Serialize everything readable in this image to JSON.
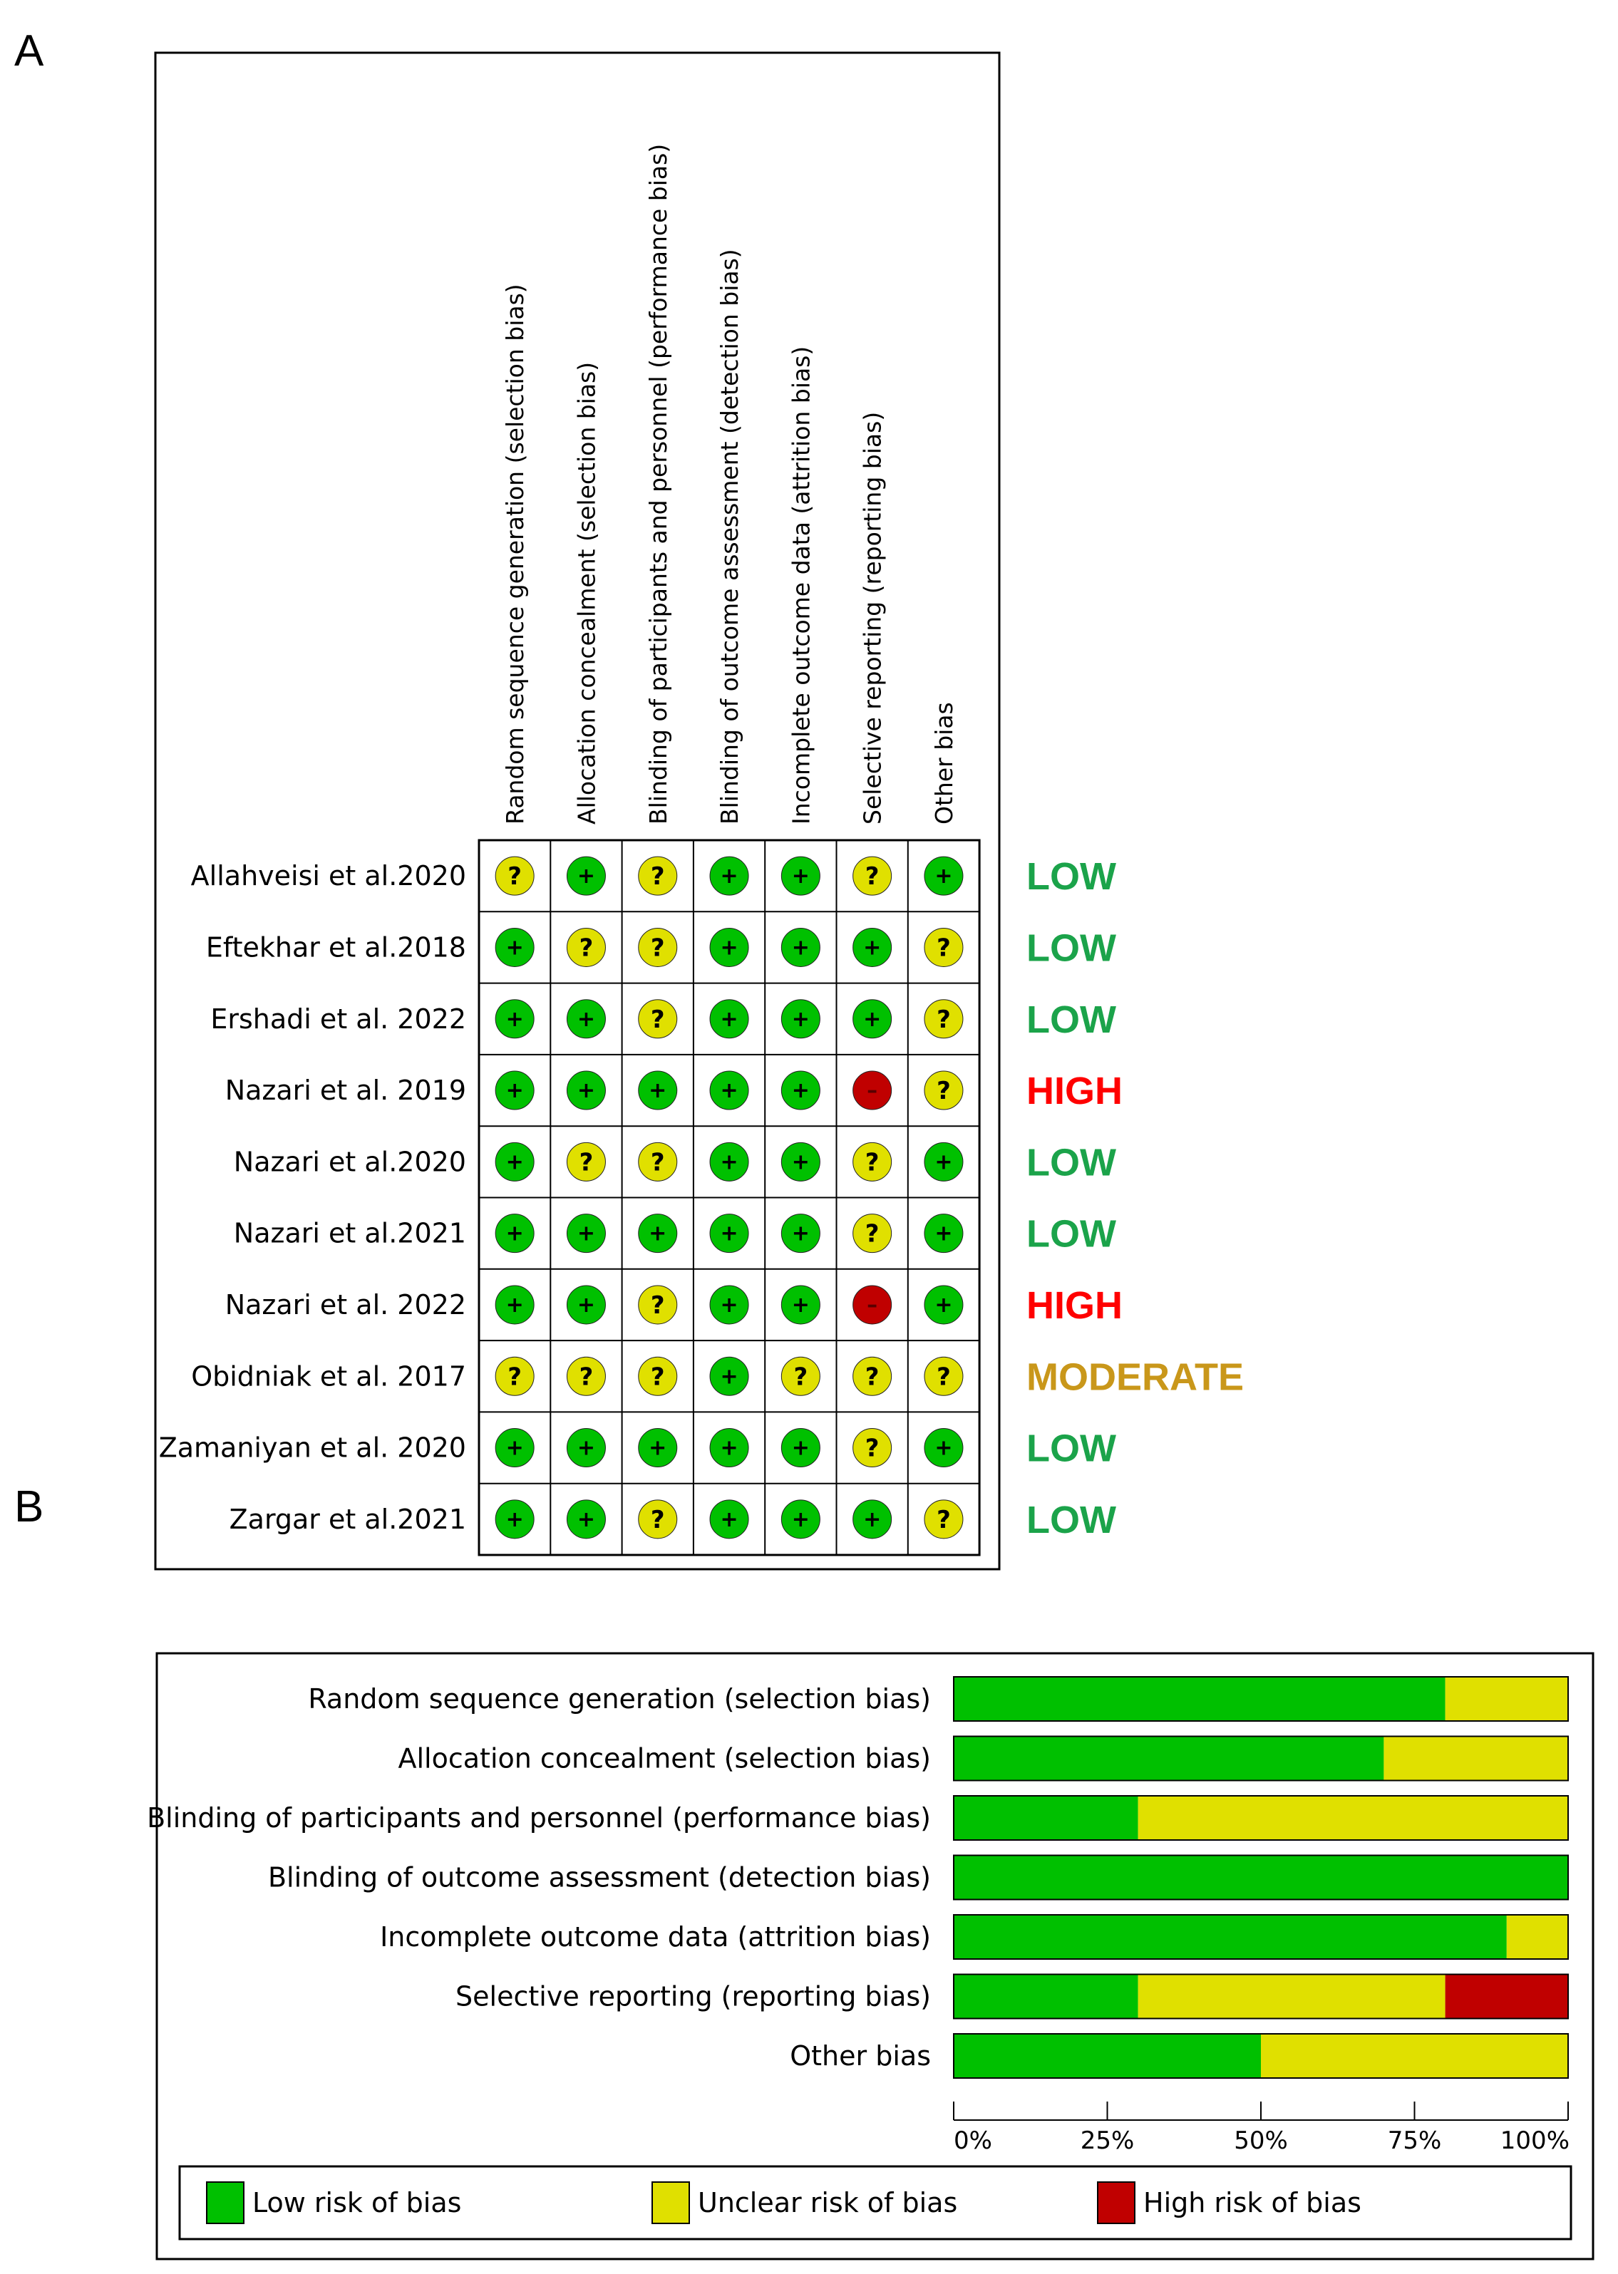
{
  "panels": {
    "a": "A",
    "b": "B"
  },
  "colors": {
    "low": "#00C000",
    "unclear": "#E0E000",
    "high": "#C00000",
    "rating_low": "#1BA34A",
    "rating_high": "#FF0000",
    "rating_moderate": "#C9971A"
  },
  "chart_data": [
    {
      "type": "table",
      "domains": [
        "Random sequence generation (selection bias)",
        "Allocation concealment (selection bias)",
        "Blinding of participants and personnel (performance bias)",
        "Blinding of outcome assessment (detection bias)",
        "Incomplete outcome data (attrition bias)",
        "Selective reporting (reporting bias)",
        "Other bias"
      ],
      "symbols": {
        "low": "+",
        "unclear": "?",
        "high": "–"
      },
      "studies": [
        {
          "name": "Allahveisi et al.2020",
          "judgements": [
            "unclear",
            "low",
            "unclear",
            "low",
            "low",
            "unclear",
            "low"
          ],
          "overall": "LOW",
          "overall_level": "low"
        },
        {
          "name": "Eftekhar et al.2018",
          "judgements": [
            "low",
            "unclear",
            "unclear",
            "low",
            "low",
            "low",
            "unclear"
          ],
          "overall": "LOW",
          "overall_level": "low"
        },
        {
          "name": "Ershadi et al. 2022",
          "judgements": [
            "low",
            "low",
            "unclear",
            "low",
            "low",
            "low",
            "unclear"
          ],
          "overall": "LOW",
          "overall_level": "low"
        },
        {
          "name": "Nazari et al. 2019",
          "judgements": [
            "low",
            "low",
            "low",
            "low",
            "low",
            "high",
            "unclear"
          ],
          "overall": "HIGH",
          "overall_level": "high"
        },
        {
          "name": "Nazari et al.2020",
          "judgements": [
            "low",
            "unclear",
            "unclear",
            "low",
            "low",
            "unclear",
            "low"
          ],
          "overall": "LOW",
          "overall_level": "low"
        },
        {
          "name": "Nazari et al.2021",
          "judgements": [
            "low",
            "low",
            "low",
            "low",
            "low",
            "unclear",
            "low"
          ],
          "overall": "LOW",
          "overall_level": "low"
        },
        {
          "name": "Nazari et al. 2022",
          "judgements": [
            "low",
            "low",
            "unclear",
            "low",
            "low",
            "high",
            "low"
          ],
          "overall": "HIGH",
          "overall_level": "high"
        },
        {
          "name": "Obidniak et al. 2017",
          "judgements": [
            "unclear",
            "unclear",
            "unclear",
            "low",
            "unclear",
            "unclear",
            "unclear"
          ],
          "overall": "MODERATE",
          "overall_level": "moderate"
        },
        {
          "name": "Zamaniyan et al. 2020",
          "judgements": [
            "low",
            "low",
            "low",
            "low",
            "low",
            "unclear",
            "low"
          ],
          "overall": "LOW",
          "overall_level": "low"
        },
        {
          "name": "Zargar et al.2021",
          "judgements": [
            "low",
            "low",
            "unclear",
            "low",
            "low",
            "low",
            "unclear"
          ],
          "overall": "LOW",
          "overall_level": "low"
        }
      ]
    },
    {
      "type": "bar",
      "orientation": "horizontal",
      "stacked": true,
      "categories": [
        "Random sequence generation (selection bias)",
        "Allocation concealment (selection bias)",
        "Blinding of participants and personnel (performance bias)",
        "Blinding of outcome assessment (detection bias)",
        "Incomplete outcome data (attrition bias)",
        "Selective reporting (reporting bias)",
        "Other bias"
      ],
      "series": [
        {
          "name": "Low risk of bias",
          "color": "#00C000",
          "values": [
            80,
            70,
            30,
            100,
            90,
            30,
            50
          ]
        },
        {
          "name": "Unclear risk of bias",
          "color": "#E0E000",
          "values": [
            20,
            30,
            70,
            0,
            10,
            50,
            50
          ]
        },
        {
          "name": "High risk of bias",
          "color": "#C00000",
          "values": [
            0,
            0,
            0,
            0,
            0,
            20,
            0
          ]
        }
      ],
      "xlim": [
        0,
        100
      ],
      "xticks": [
        "0%",
        "25%",
        "50%",
        "75%",
        "100%"
      ],
      "legend": "bottom"
    }
  ]
}
